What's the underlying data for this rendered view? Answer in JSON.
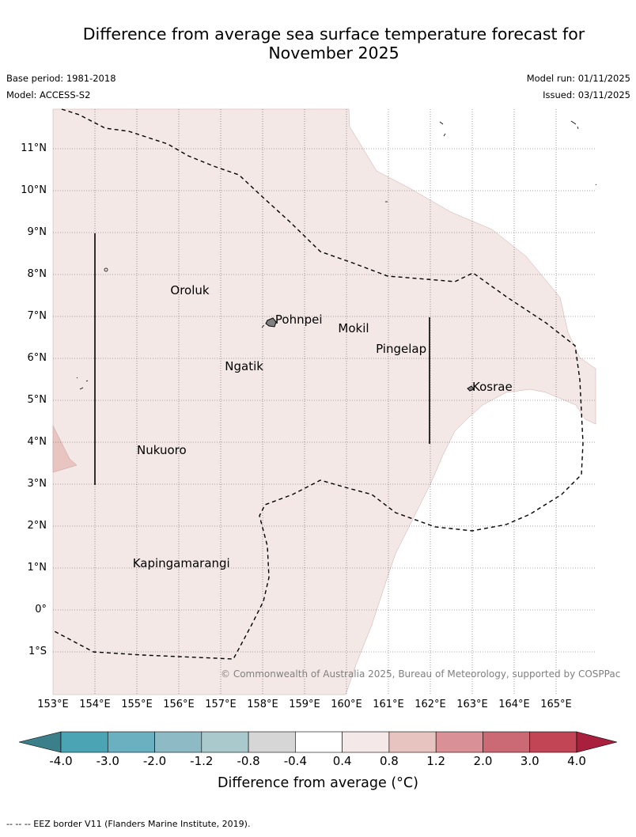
{
  "header": {
    "title_line1": "Difference from average sea surface temperature forecast for",
    "title_line2": "November 2025",
    "base_period": "Base period: 1981-2018",
    "model": "Model: ACCESS-S2",
    "model_run": "Model run: 01/11/2025",
    "issued": "Issued: 03/11/2025"
  },
  "map": {
    "lon_range": [
      153,
      166
    ],
    "lat_range": [
      -2,
      12
    ],
    "lat_labels": [
      "11°N",
      "10°N",
      "9°N",
      "8°N",
      "7°N",
      "6°N",
      "5°N",
      "4°N",
      "3°N",
      "2°N",
      "1°N",
      "0°",
      "1°S"
    ],
    "lon_labels": [
      "153°E",
      "154°E",
      "155°E",
      "156°E",
      "157°E",
      "158°E",
      "159°E",
      "160°E",
      "161°E",
      "162°E",
      "163°E",
      "164°E",
      "165°E"
    ],
    "places": [
      {
        "name": "Oroluk",
        "lon": 155.8,
        "lat": 7.6
      },
      {
        "name": "Pohnpei",
        "lon": 158.3,
        "lat": 6.9
      },
      {
        "name": "Mokil",
        "lon": 159.8,
        "lat": 6.7
      },
      {
        "name": "Pingelap",
        "lon": 160.7,
        "lat": 6.2
      },
      {
        "name": "Ngatik",
        "lon": 157.1,
        "lat": 5.8
      },
      {
        "name": "Kosrae",
        "lon": 163.0,
        "lat": 5.3
      },
      {
        "name": "Nukuoro",
        "lon": 155.0,
        "lat": 3.8
      },
      {
        "name": "Kapingamarangi",
        "lon": 154.9,
        "lat": 1.1
      }
    ],
    "copyright": "© Commonwealth of Australia 2025, Bureau of Meteorology, supported by COSPPac"
  },
  "colorbar": {
    "labels": [
      "-4.0",
      "-3.0",
      "-2.0",
      "-1.2",
      "-0.8",
      "-0.4",
      "0.4",
      "0.8",
      "1.2",
      "2.0",
      "3.0",
      "4.0"
    ],
    "colors": [
      "#4aa4b4",
      "#6bb0c0",
      "#8ebac5",
      "#aac9cc",
      "#d6d6d6",
      "#ffffff",
      "#f5e8e8",
      "#e8c4c1",
      "#d99096",
      "#cb6a75",
      "#c24555"
    ],
    "under_color": "#3b7f8a",
    "over_color": "#a8203e",
    "title": "Difference from average (°C)"
  },
  "footnote": "--  --  -- EEZ border V11 (Flanders Marine Institute, 2019)."
}
